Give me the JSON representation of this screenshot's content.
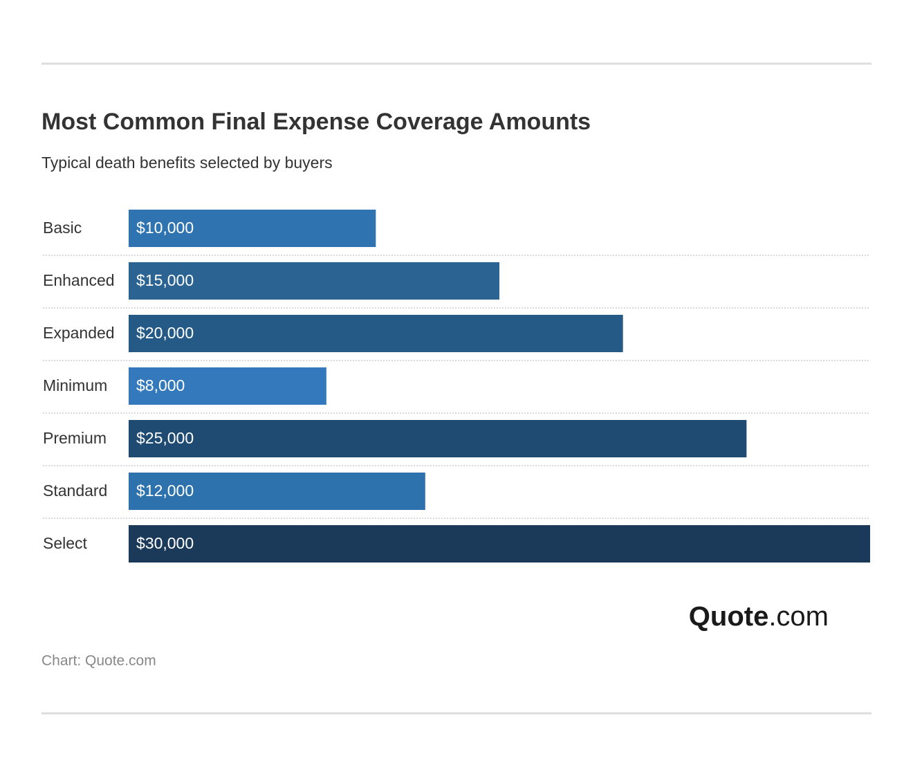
{
  "chart_data": {
    "type": "bar",
    "orientation": "horizontal",
    "title": "Most Common Final Expense Coverage Amounts",
    "subtitle": "Typical death benefits selected by buyers",
    "categories": [
      "Basic",
      "Enhanced",
      "Expanded",
      "Minimum",
      "Premium",
      "Standard",
      "Select"
    ],
    "values": [
      10000,
      15000,
      20000,
      8000,
      25000,
      12000,
      30000
    ],
    "value_labels": [
      "$10,000",
      "$15,000",
      "$20,000",
      "$8,000",
      "$25,000",
      "$12,000",
      "$30,000"
    ],
    "colors": [
      "#2f74b0",
      "#2b6393",
      "#255a87",
      "#3479bb",
      "#1f4a71",
      "#2e72ad",
      "#1b3a5a"
    ],
    "xlim": [
      0,
      30000
    ],
    "source": "Chart: Quote.com",
    "logo": {
      "name": "Quote",
      "suffix": ".com"
    }
  }
}
